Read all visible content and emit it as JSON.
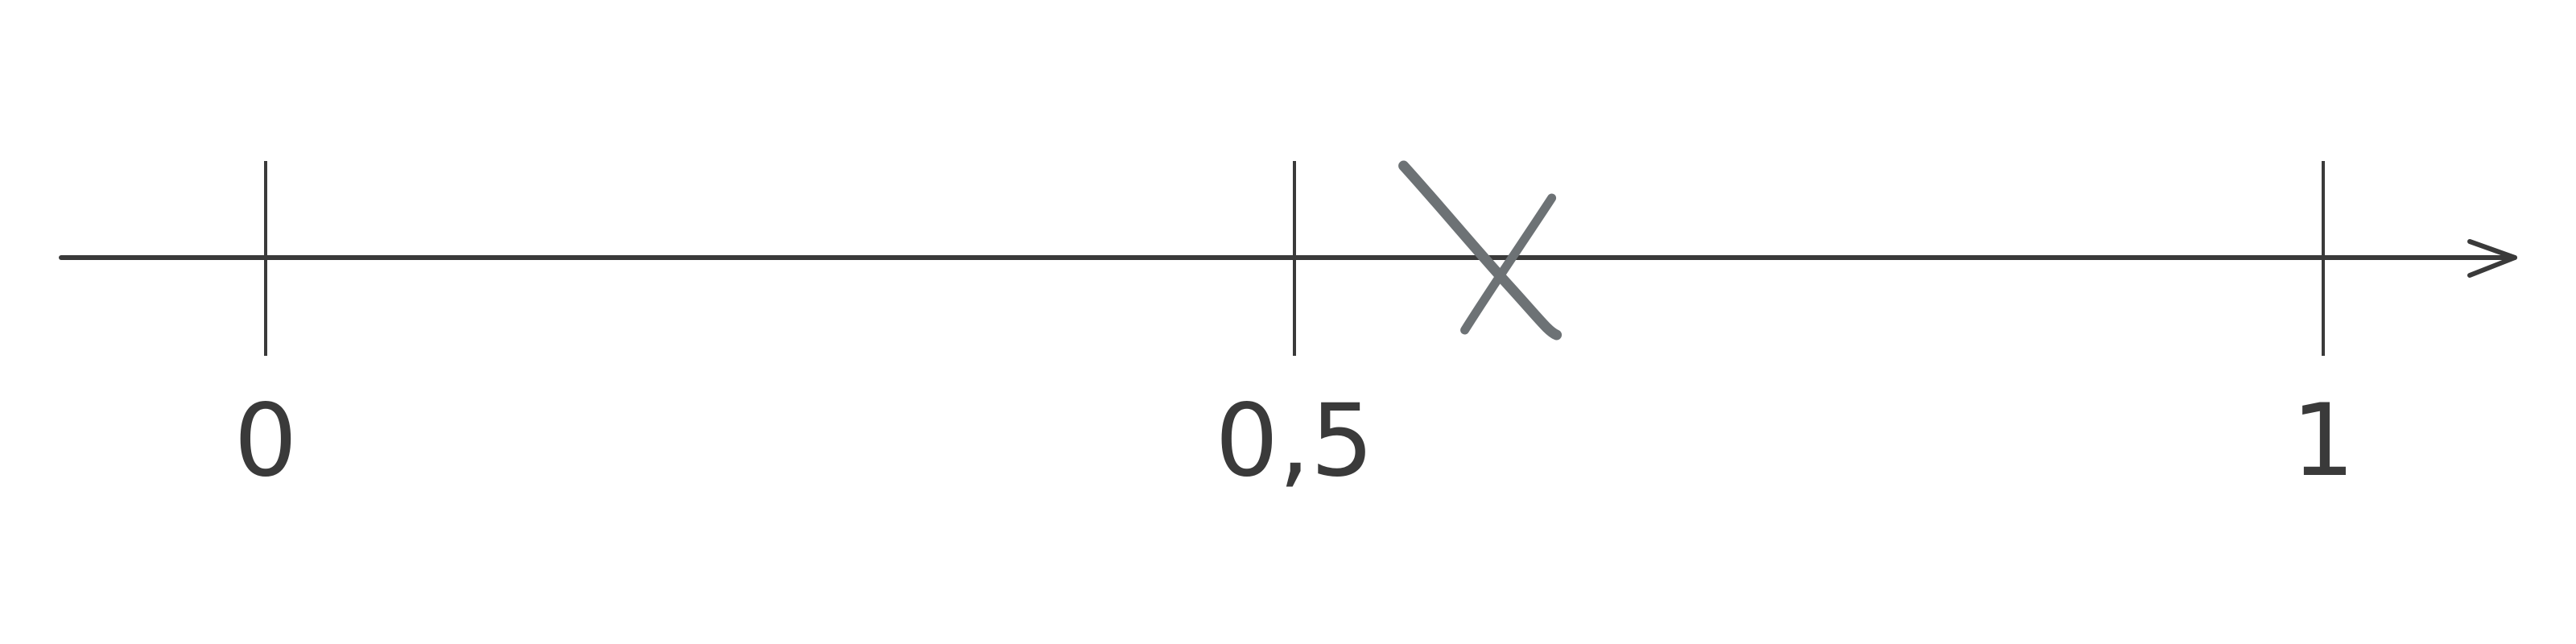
{
  "number_line": {
    "min": 0,
    "max": 1,
    "ticks": [
      {
        "value": 0,
        "label": "0"
      },
      {
        "value": 0.5,
        "label": "0,5"
      },
      {
        "value": 1,
        "label": "1"
      }
    ],
    "marked_point": {
      "value": 0.6,
      "marker": "x-mark-icon"
    },
    "axis_color": "#3a3a3a",
    "marker_color": "#6d7275"
  }
}
